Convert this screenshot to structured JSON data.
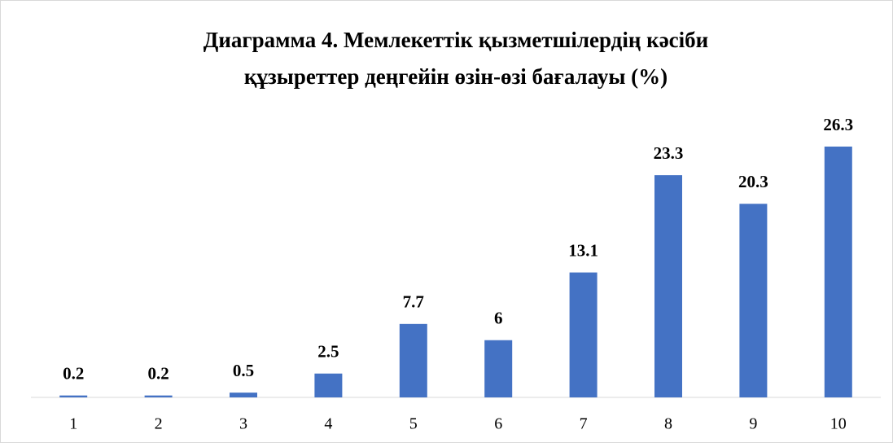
{
  "chart_data": {
    "type": "bar",
    "title": [
      "Диаграмма 4. Мемлекеттік қызметшілердің кәсіби",
      "құзыреттер деңгейін өзін-өзі бағалауы (%)"
    ],
    "categories": [
      "1",
      "2",
      "3",
      "4",
      "5",
      "6",
      "7",
      "8",
      "9",
      "10"
    ],
    "values": [
      0.2,
      0.2,
      0.5,
      2.5,
      7.7,
      6,
      13.1,
      23.3,
      20.3,
      26.3
    ],
    "color": "#4472c4"
  }
}
